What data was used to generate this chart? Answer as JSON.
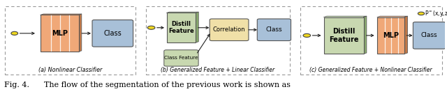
{
  "fig_width": 6.4,
  "fig_height": 1.45,
  "dpi": 100,
  "colors": {
    "mlp_fill": "#f0a878",
    "mlp_side": "#c07848",
    "mlp_top": "#d08858",
    "class_fill": "#a8c0d8",
    "distill_fill": "#c8d8b0",
    "distill_side": "#8aab70",
    "distill_top": "#aac890",
    "correlation_fill": "#f0e0a8",
    "node_yellow": "#f0d820",
    "node_border": "#444444",
    "box_border": "#555555",
    "panel_border": "#999999",
    "arrow_color": "#222222",
    "white_line": "#ffffff"
  },
  "panel_labels": [
    "(a) Nonlinear Classifier",
    "(b) Generalized Feature + Linear Classifier",
    "(c) Generalized Feature + Nonlinear Classifier"
  ],
  "caption": "Fig. 4.      The flow of the segmentation of the previous work is shown as",
  "p_label": "P⁺(x,y,z)"
}
